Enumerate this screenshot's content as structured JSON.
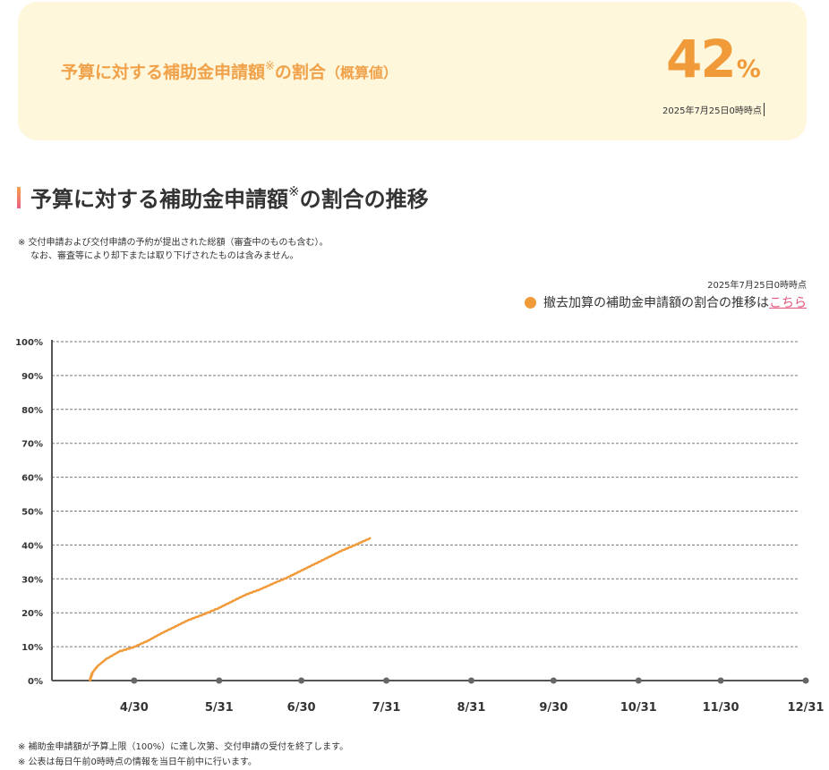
{
  "summary": {
    "title_main": "予算に対する補助金申請額",
    "title_mark": "※",
    "title_suffix": "の割合",
    "title_paren": "（概算値）",
    "value": "42",
    "unit": "%",
    "timestamp": "2025年7月25日0時時点"
  },
  "section": {
    "title_main": "予算に対する補助金申請額",
    "title_mark": "※",
    "title_suffix": "の割合の推移",
    "note_line1": "※ 交付申請および交付申請の予約が提出された総額（審査中のものも含む）。",
    "note_line2": "なお、審査等により却下または取り下げされたものは含みません。",
    "timestamp": "2025年7月25日0時時点",
    "legend_text": "撤去加算の補助金申請額の割合の推移は",
    "legend_link": "こちら"
  },
  "footnotes": [
    "※  補助金申請額が予算上限（100%）に達し次第、交付申請の受付を終了します。",
    "※  公表は毎日午前0時時点の情報を当日午前中に行います。"
  ],
  "colors": {
    "accent": "#f19a3a",
    "card_bg": "#fff7dc",
    "link": "#e0567a"
  },
  "chart_data": {
    "type": "line",
    "title": "",
    "xlabel": "",
    "ylabel": "",
    "x_ticks": [
      "4/30",
      "5/31",
      "6/30",
      "7/31",
      "8/31",
      "9/30",
      "10/31",
      "11/30",
      "12/31"
    ],
    "y_ticks": [
      "0%",
      "10%",
      "20%",
      "30%",
      "40%",
      "50%",
      "60%",
      "70%",
      "80%",
      "90%",
      "100%"
    ],
    "ylim": [
      0,
      100
    ],
    "x_range": [
      "2025-03-31",
      "2025-12-31"
    ],
    "grid": "horizontal-dashed",
    "series": [
      {
        "color": "#f19a3a",
        "points": [
          [
            "2025-04-14",
            0
          ],
          [
            "2025-04-15",
            2.5
          ],
          [
            "2025-04-17",
            4.5
          ],
          [
            "2025-04-20",
            6.5
          ],
          [
            "2025-04-25",
            8.8
          ],
          [
            "2025-04-30",
            10
          ],
          [
            "2025-05-05",
            11.8
          ],
          [
            "2025-05-10",
            14
          ],
          [
            "2025-05-15",
            16
          ],
          [
            "2025-05-20",
            18
          ],
          [
            "2025-05-25",
            19.5
          ],
          [
            "2025-05-31",
            21.5
          ],
          [
            "2025-06-05",
            23.5
          ],
          [
            "2025-06-10",
            25.5
          ],
          [
            "2025-06-15",
            27
          ],
          [
            "2025-06-20",
            28.8
          ],
          [
            "2025-06-25",
            30.5
          ],
          [
            "2025-06-30",
            32.5
          ],
          [
            "2025-07-05",
            34.5
          ],
          [
            "2025-07-10",
            36.5
          ],
          [
            "2025-07-15",
            38.5
          ],
          [
            "2025-07-20",
            40.2
          ],
          [
            "2025-07-25",
            42
          ]
        ]
      }
    ]
  }
}
